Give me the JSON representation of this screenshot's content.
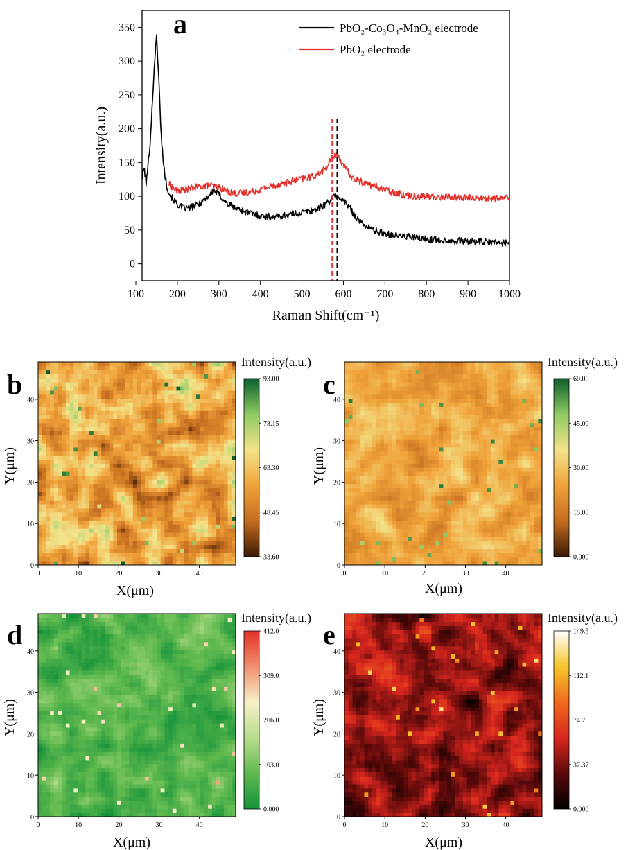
{
  "colors": {
    "series_black": "#000000",
    "series_red": "#e3302a"
  },
  "chart_data": [
    {
      "type": "line",
      "panel": "a",
      "xlabel": "Raman Shift(cm⁻¹)",
      "ylabel": "Intensity(a.u.)",
      "xlim": [
        115,
        1000
      ],
      "ylim": [
        -25,
        375
      ],
      "xticks": [
        100,
        200,
        300,
        400,
        500,
        600,
        700,
        800,
        900,
        1000
      ],
      "yticks": [
        0,
        50,
        100,
        150,
        200,
        250,
        300,
        350
      ],
      "legend": "top-right",
      "series": [
        {
          "name": "PbO₂-Co₃O₄-MnO₂ electrode",
          "color": "#000000",
          "x": [
            115,
            120,
            125,
            130,
            135,
            140,
            145,
            150,
            155,
            160,
            165,
            170,
            175,
            180,
            190,
            200,
            210,
            220,
            230,
            240,
            250,
            260,
            270,
            280,
            290,
            300,
            310,
            320,
            340,
            360,
            380,
            400,
            420,
            440,
            460,
            480,
            500,
            520,
            540,
            560,
            570,
            580,
            590,
            600,
            610,
            620,
            630,
            640,
            660,
            680,
            700,
            720,
            740,
            760,
            780,
            800,
            820,
            840,
            860,
            880,
            900,
            920,
            940,
            960,
            980,
            1000
          ],
          "y": [
            128,
            142,
            118,
            150,
            185,
            240,
            300,
            335,
            280,
            200,
            160,
            130,
            115,
            105,
            95,
            88,
            84,
            82,
            83,
            85,
            88,
            93,
            98,
            104,
            108,
            103,
            96,
            89,
            83,
            78,
            74,
            71,
            70,
            70,
            72,
            74,
            76,
            78,
            82,
            90,
            96,
            100,
            98,
            94,
            87,
            78,
            70,
            62,
            54,
            48,
            45,
            43,
            41,
            40,
            38,
            36,
            36,
            35,
            34,
            34,
            33,
            33,
            32,
            32,
            31,
            31
          ],
          "noise": 5
        },
        {
          "name": "PbO₂ electrode",
          "color": "#e3302a",
          "x": [
            180,
            190,
            200,
            220,
            240,
            260,
            280,
            300,
            320,
            340,
            360,
            380,
            400,
            420,
            440,
            460,
            480,
            500,
            520,
            540,
            560,
            570,
            580,
            590,
            600,
            620,
            640,
            660,
            680,
            700,
            720,
            740,
            760,
            780,
            800,
            820,
            840,
            860,
            880,
            900,
            920,
            940,
            960,
            980,
            1000
          ],
          "y": [
            118,
            112,
            108,
            110,
            113,
            115,
            116,
            113,
            108,
            104,
            105,
            107,
            110,
            114,
            117,
            120,
            123,
            126,
            128,
            133,
            143,
            155,
            162,
            158,
            145,
            128,
            122,
            118,
            114,
            110,
            106,
            103,
            101,
            100,
            100,
            99,
            99,
            99,
            98,
            98,
            98,
            97,
            97,
            97,
            98
          ],
          "noise": 5
        }
      ],
      "reference_lines": [
        {
          "x": 573,
          "color": "#e3302a"
        },
        {
          "x": 585,
          "color": "#000000"
        }
      ]
    },
    {
      "type": "heatmap",
      "panel": "b",
      "xlabel": "X(μm)",
      "ylabel": "Y(μm)",
      "xlim": [
        0,
        49
      ],
      "ylim": [
        0,
        49
      ],
      "xticks": [
        0,
        10,
        20,
        30,
        40
      ],
      "yticks": [
        0,
        10,
        20,
        30,
        40
      ],
      "colorbar_title": "Intensity(a.u.)",
      "colorbar_ticks": [
        "93.00",
        "78.15",
        "63.30",
        "48.45",
        "33.60"
      ],
      "colorbar_range": [
        33.6,
        93.0
      ],
      "colormap": [
        "#3a1a05",
        "#c46c1f",
        "#f0a23a",
        "#f3e38a",
        "#8fca63",
        "#0b5e2c"
      ],
      "mean_level": 0.42,
      "contrast": 0.3,
      "seed": 11
    },
    {
      "type": "heatmap",
      "panel": "c",
      "xlabel": "X(μm)",
      "ylabel": "Y(μm)",
      "xlim": [
        0,
        49
      ],
      "ylim": [
        0,
        49
      ],
      "xticks": [
        0,
        10,
        20,
        30,
        40
      ],
      "yticks": [
        0,
        10,
        20,
        30,
        40
      ],
      "colorbar_title": "Intensity(a.u.)",
      "colorbar_ticks": [
        "60.00",
        "45.00",
        "30.00",
        "15.00",
        "0.000"
      ],
      "colorbar_range": [
        0,
        60
      ],
      "colormap": [
        "#3a1a05",
        "#c46c1f",
        "#f0a23a",
        "#f3e38a",
        "#8fca63",
        "#0b5e2c"
      ],
      "mean_level": 0.42,
      "contrast": 0.16,
      "seed": 23
    },
    {
      "type": "heatmap",
      "panel": "d",
      "xlabel": "X(μm)",
      "ylabel": "Y(μm)",
      "xlim": [
        0,
        49
      ],
      "ylim": [
        0,
        49
      ],
      "xticks": [
        0,
        10,
        20,
        30,
        40
      ],
      "yticks": [
        0,
        10,
        20,
        30,
        40
      ],
      "colorbar_title": "Intensity(a.u.)",
      "colorbar_ticks": [
        "412.0",
        "309.0",
        "206.0",
        "103.0",
        "0.000"
      ],
      "colorbar_range": [
        0,
        412
      ],
      "colormap": [
        "#14923a",
        "#5fb94f",
        "#b8dd8d",
        "#f6f0c8",
        "#f08f6f",
        "#e3302a"
      ],
      "mean_level": 0.17,
      "contrast": 0.14,
      "seed": 37
    },
    {
      "type": "heatmap",
      "panel": "e",
      "xlabel": "X(μm)",
      "ylabel": "Y(μm)",
      "xlim": [
        0,
        49
      ],
      "ylim": [
        0,
        49
      ],
      "xticks": [
        0,
        10,
        20,
        30,
        40
      ],
      "yticks": [
        0,
        10,
        20,
        30,
        40
      ],
      "colorbar_title": "Intensity(a.u.)",
      "colorbar_ticks": [
        "149.5",
        "112.1",
        "74.75",
        "37.37",
        "0.000"
      ],
      "colorbar_range": [
        0,
        149.5
      ],
      "colormap": [
        "#000000",
        "#5a0a0a",
        "#d8261e",
        "#f06a1e",
        "#f6c629",
        "#ffffff"
      ],
      "mean_level": 0.3,
      "contrast": 0.2,
      "seed": 53
    }
  ]
}
